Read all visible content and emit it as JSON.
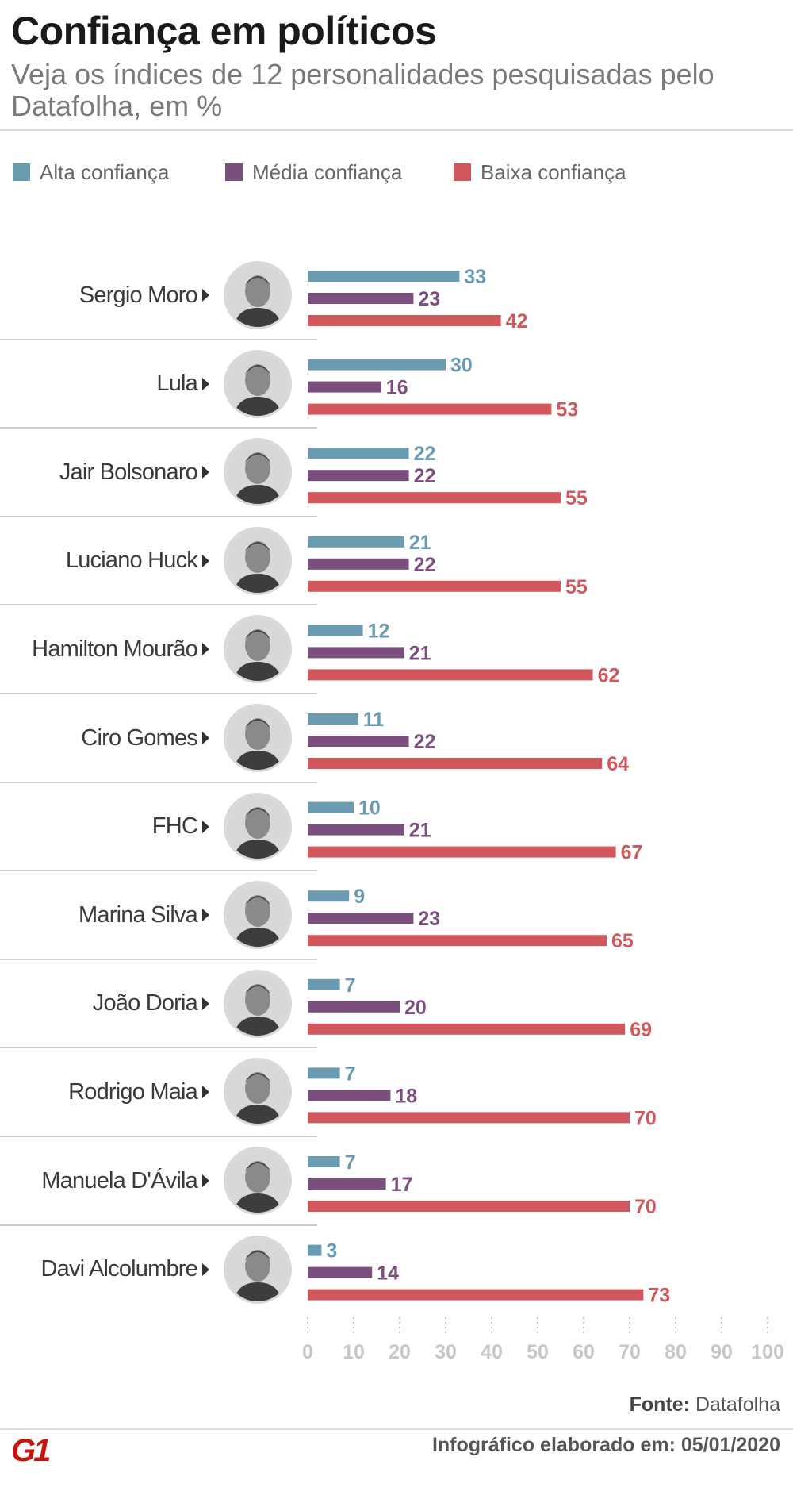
{
  "chart_data": {
    "type": "bar",
    "orientation": "horizontal",
    "title": "Confiança em políticos",
    "subtitle": "Veja os índices de 12 personalidades pesquisadas pelo Datafolha, em %",
    "categories": [
      "Sergio Moro",
      "Lula",
      "Jair Bolsonaro",
      "Luciano Huck",
      "Hamilton Mourão",
      "Ciro Gomes",
      "FHC",
      "Marina Silva",
      "João Doria",
      "Rodrigo Maia",
      "Manuela D'Ávila",
      "Davi Alcolumbre"
    ],
    "series": [
      {
        "name": "Alta confiança",
        "color": "#6a9bb1",
        "values": [
          33,
          30,
          22,
          21,
          12,
          11,
          10,
          9,
          7,
          7,
          7,
          3
        ]
      },
      {
        "name": "Média confiança",
        "color": "#7a4f7e",
        "values": [
          23,
          16,
          22,
          22,
          21,
          22,
          21,
          23,
          20,
          18,
          17,
          14
        ]
      },
      {
        "name": "Baixa confiança",
        "color": "#d0585c",
        "values": [
          42,
          53,
          55,
          55,
          62,
          64,
          67,
          65,
          69,
          70,
          70,
          73
        ]
      }
    ],
    "xlim": [
      0,
      100
    ],
    "xticks": [
      0,
      10,
      20,
      30,
      40,
      50,
      60,
      70,
      80,
      90,
      100
    ],
    "xlabel": "",
    "ylabel": "",
    "legend_position": "top"
  },
  "footer": {
    "source_label": "Fonte:",
    "source_value": "Datafolha",
    "date_text": "Infográfico elaborado em: 05/01/2020",
    "logo_text": "G1"
  },
  "colors": {
    "tick": "#c7c7c7",
    "separator": "#cfcfcf",
    "brand": "#c4170c"
  }
}
